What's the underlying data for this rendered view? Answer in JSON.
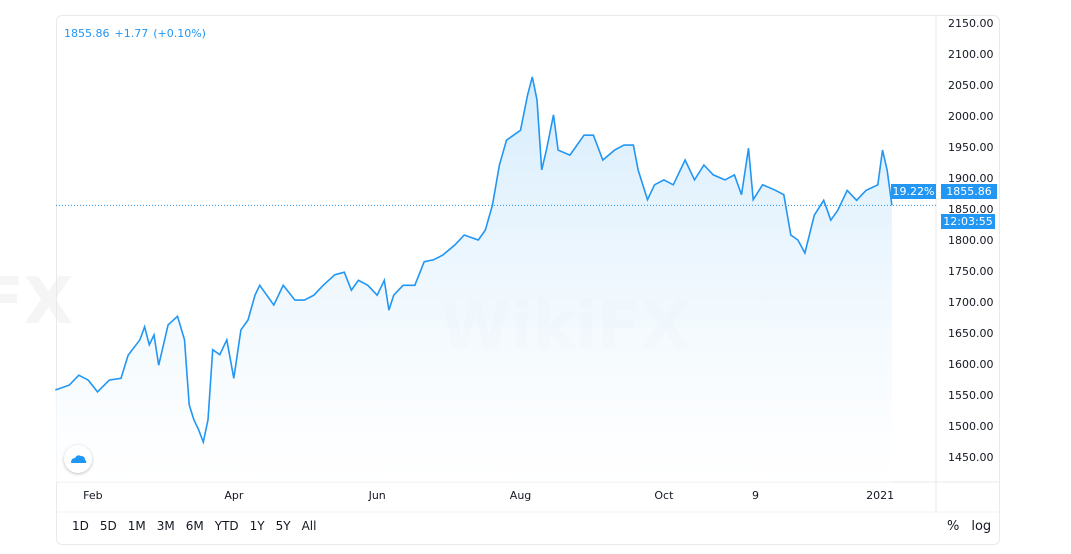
{
  "legend": {
    "price": "1855.86",
    "change": "+1.77",
    "change_pct": "(+0.10%)"
  },
  "price_label": "1855.86",
  "pct_label": "19.22%",
  "countdown_label": "12:03:55",
  "range_buttons": [
    "1D",
    "5D",
    "1M",
    "3M",
    "6M",
    "YTD",
    "1Y",
    "5Y",
    "All"
  ],
  "scale_buttons": [
    "%",
    "log"
  ],
  "watermark": "WikiFX",
  "colors": {
    "line": "#2196f3",
    "label_bg": "#2196f3",
    "fill_top": "#d6ecfc",
    "fill_bottom": "#ffffff"
  },
  "chart_data": {
    "type": "area",
    "ylim": [
      1425,
      2165
    ],
    "y_ticks": [
      "2150.00",
      "2100.00",
      "2050.00",
      "2000.00",
      "1950.00",
      "1900.00",
      "1850.00",
      "1800.00",
      "1750.00",
      "1700.00",
      "1650.00",
      "1600.00",
      "1550.00",
      "1500.00",
      "1450.00"
    ],
    "x_ticks": [
      {
        "label": "Feb",
        "date": "2020-02-01"
      },
      {
        "label": "Apr",
        "date": "2020-04-01"
      },
      {
        "label": "Jun",
        "date": "2020-06-01"
      },
      {
        "label": "Aug",
        "date": "2020-08-01"
      },
      {
        "label": "Oct",
        "date": "2020-10-01"
      },
      {
        "label": "9",
        "date": "2020-11-09"
      },
      {
        "label": "2021",
        "date": "2021-01-01"
      }
    ],
    "last_value": 1855.86,
    "grid": false,
    "points": [
      [
        "2020-01-16",
        1558
      ],
      [
        "2020-01-22",
        1566
      ],
      [
        "2020-01-26",
        1582
      ],
      [
        "2020-01-30",
        1574
      ],
      [
        "2020-02-03",
        1555
      ],
      [
        "2020-02-08",
        1574
      ],
      [
        "2020-02-13",
        1577
      ],
      [
        "2020-02-16",
        1614
      ],
      [
        "2020-02-21",
        1639
      ],
      [
        "2020-02-23",
        1660
      ],
      [
        "2020-02-25",
        1631
      ],
      [
        "2020-02-27",
        1647
      ],
      [
        "2020-02-29",
        1598
      ],
      [
        "2020-03-04",
        1663
      ],
      [
        "2020-03-08",
        1677
      ],
      [
        "2020-03-11",
        1639
      ],
      [
        "2020-03-13",
        1534
      ],
      [
        "2020-03-15",
        1510
      ],
      [
        "2020-03-17",
        1494
      ],
      [
        "2020-03-19",
        1474
      ],
      [
        "2020-03-21",
        1510
      ],
      [
        "2020-03-23",
        1623
      ],
      [
        "2020-03-26",
        1615
      ],
      [
        "2020-03-29",
        1639
      ],
      [
        "2020-04-01",
        1577
      ],
      [
        "2020-04-04",
        1655
      ],
      [
        "2020-04-07",
        1671
      ],
      [
        "2020-04-10",
        1711
      ],
      [
        "2020-04-12",
        1727
      ],
      [
        "2020-04-15",
        1711
      ],
      [
        "2020-04-18",
        1695
      ],
      [
        "2020-04-22",
        1727
      ],
      [
        "2020-04-27",
        1703
      ],
      [
        "2020-05-01",
        1703
      ],
      [
        "2020-05-05",
        1711
      ],
      [
        "2020-05-09",
        1727
      ],
      [
        "2020-05-14",
        1744
      ],
      [
        "2020-05-18",
        1748
      ],
      [
        "2020-05-21",
        1719
      ],
      [
        "2020-05-24",
        1735
      ],
      [
        "2020-05-28",
        1727
      ],
      [
        "2020-06-01",
        1711
      ],
      [
        "2020-06-04",
        1735
      ],
      [
        "2020-06-06",
        1687
      ],
      [
        "2020-06-08",
        1711
      ],
      [
        "2020-06-12",
        1727
      ],
      [
        "2020-06-17",
        1727
      ],
      [
        "2020-06-21",
        1765
      ],
      [
        "2020-06-25",
        1768
      ],
      [
        "2020-06-29",
        1776
      ],
      [
        "2020-07-04",
        1792
      ],
      [
        "2020-07-08",
        1808
      ],
      [
        "2020-07-14",
        1800
      ],
      [
        "2020-07-17",
        1816
      ],
      [
        "2020-07-20",
        1856
      ],
      [
        "2020-07-23",
        1921
      ],
      [
        "2020-07-26",
        1961
      ],
      [
        "2020-07-29",
        1969
      ],
      [
        "2020-08-01",
        1977
      ],
      [
        "2020-08-04",
        2034
      ],
      [
        "2020-08-06",
        2063
      ],
      [
        "2020-08-08",
        2026
      ],
      [
        "2020-08-10",
        1913
      ],
      [
        "2020-08-12",
        1945
      ],
      [
        "2020-08-15",
        2002
      ],
      [
        "2020-08-17",
        1945
      ],
      [
        "2020-08-22",
        1937
      ],
      [
        "2020-08-25",
        1953
      ],
      [
        "2020-08-28",
        1969
      ],
      [
        "2020-09-01",
        1969
      ],
      [
        "2020-09-05",
        1929
      ],
      [
        "2020-09-10",
        1945
      ],
      [
        "2020-09-14",
        1953
      ],
      [
        "2020-09-18",
        1953
      ],
      [
        "2020-09-20",
        1913
      ],
      [
        "2020-09-24",
        1865
      ],
      [
        "2020-09-27",
        1889
      ],
      [
        "2020-10-01",
        1897
      ],
      [
        "2020-10-05",
        1889
      ],
      [
        "2020-10-10",
        1929
      ],
      [
        "2020-10-14",
        1897
      ],
      [
        "2020-10-18",
        1921
      ],
      [
        "2020-10-22",
        1905
      ],
      [
        "2020-10-27",
        1897
      ],
      [
        "2020-10-31",
        1905
      ],
      [
        "2020-11-03",
        1873
      ],
      [
        "2020-11-06",
        1948
      ],
      [
        "2020-11-08",
        1865
      ],
      [
        "2020-11-12",
        1889
      ],
      [
        "2020-11-17",
        1881
      ],
      [
        "2020-11-21",
        1873
      ],
      [
        "2020-11-24",
        1808
      ],
      [
        "2020-11-27",
        1800
      ],
      [
        "2020-11-30",
        1779
      ],
      [
        "2020-12-04",
        1840
      ],
      [
        "2020-12-08",
        1864
      ],
      [
        "2020-12-11",
        1832
      ],
      [
        "2020-12-14",
        1848
      ],
      [
        "2020-12-18",
        1880
      ],
      [
        "2020-12-22",
        1864
      ],
      [
        "2020-12-26",
        1880
      ],
      [
        "2020-12-31",
        1889
      ],
      [
        "2021-01-02",
        1945
      ],
      [
        "2021-01-04",
        1913
      ],
      [
        "2021-01-06",
        1855.86
      ]
    ]
  }
}
